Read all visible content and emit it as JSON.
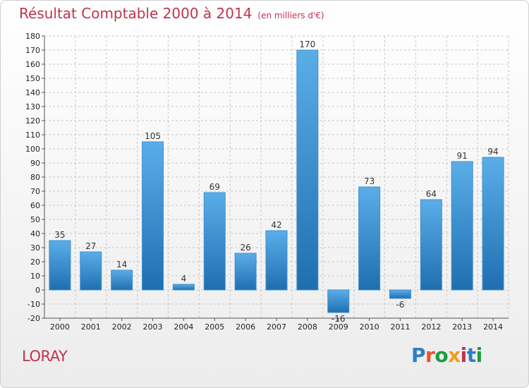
{
  "title": "Résultat Comptable 2000 à 2014",
  "unit": "(en milliers d'€)",
  "place": "LORAY",
  "logo": {
    "text": "Proxiti",
    "letter_colors": [
      "#2b7fc5",
      "#e8512b",
      "#1a9e3e",
      "#e8a020",
      "#c0334d",
      "#2b7fc5",
      "#1a9e3e"
    ]
  },
  "colors": {
    "bar_top": "#5aaee8",
    "bar_bottom": "#1f6fb0",
    "title": "#c0334d"
  },
  "chart_data": {
    "type": "bar",
    "categories": [
      "2000",
      "2001",
      "2002",
      "2003",
      "2004",
      "2005",
      "2006",
      "2007",
      "2008",
      "2009",
      "2010",
      "2011",
      "2012",
      "2013",
      "2014"
    ],
    "values": [
      35,
      27,
      14,
      105,
      4,
      69,
      26,
      42,
      170,
      -16,
      73,
      -6,
      64,
      91,
      94
    ],
    "ylim": [
      -20,
      180
    ],
    "yticks": [
      -20,
      -10,
      0,
      10,
      20,
      30,
      40,
      50,
      60,
      70,
      80,
      90,
      100,
      110,
      120,
      130,
      140,
      150,
      160,
      170,
      180
    ],
    "grid": true,
    "xlabel": "",
    "ylabel": ""
  }
}
